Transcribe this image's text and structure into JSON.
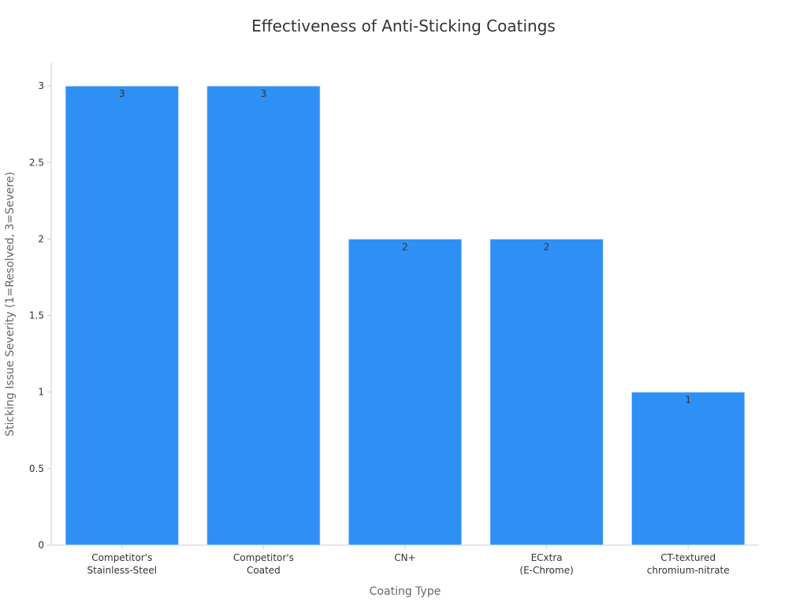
{
  "chart_data": {
    "type": "bar",
    "title": "Effectiveness of Anti-Sticking Coatings",
    "xlabel": "Coating Type",
    "ylabel": "Sticking Issue Severity (1=Resolved, 3=Severe)",
    "categories": [
      [
        "Competitor's",
        "Stainless-Steel"
      ],
      [
        "Competitor's",
        "Coated"
      ],
      [
        "CN+"
      ],
      [
        "ECxtra",
        "(E-Chrome)"
      ],
      [
        "CT-textured",
        "chromium-nitrate"
      ]
    ],
    "values": [
      3,
      3,
      2,
      2,
      1
    ],
    "data_labels": [
      "3",
      "3",
      "2",
      "2",
      "1"
    ],
    "ylim": [
      0,
      3.15
    ],
    "yticks": [
      0,
      0.5,
      1,
      1.5,
      2,
      2.5,
      3
    ],
    "ytick_labels": [
      "0",
      "0.5",
      "1",
      "1.5",
      "2",
      "2.5",
      "3"
    ],
    "grid": false,
    "legend": "none",
    "colors": {
      "bar": "#2e90f5",
      "bar_edge": "#dbe9f8",
      "axis": "#cccccc",
      "text": "#333333",
      "axis_label": "#666666"
    }
  }
}
